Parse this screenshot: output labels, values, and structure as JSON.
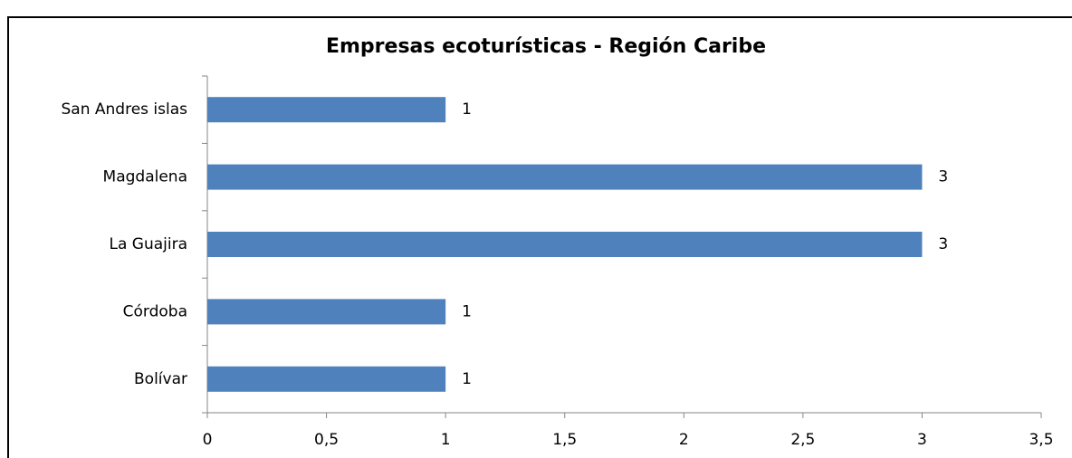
{
  "chart_data": {
    "type": "bar",
    "orientation": "horizontal",
    "title": "Empresas ecoturísticas - Región Caribe",
    "categories": [
      "Bolívar",
      "Córdoba",
      "La Guajira",
      "Magdalena",
      "San Andres islas"
    ],
    "values": [
      1,
      1,
      3,
      3,
      1
    ],
    "color": "#4f81bd",
    "xlim": [
      0,
      3.5
    ],
    "xticks": [
      0,
      {
        "value": 0.5,
        "label": "0,5"
      },
      1,
      {
        "value": 1.5,
        "label": "1,5"
      },
      2,
      {
        "value": 2.5,
        "label": "2,5"
      },
      3,
      {
        "value": 3.5,
        "label": "3,5"
      }
    ],
    "grid": false
  }
}
